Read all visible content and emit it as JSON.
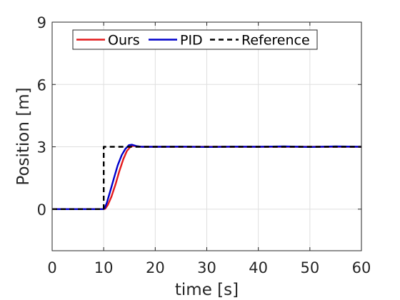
{
  "chart_data": {
    "type": "line",
    "title": "",
    "xlabel": "time [s]",
    "ylabel": "Position [m]",
    "xlim": [
      0,
      60
    ],
    "ylim": [
      -2,
      9
    ],
    "xticks": [
      0,
      10,
      20,
      30,
      40,
      50,
      60
    ],
    "yticks": [
      0,
      3,
      6,
      9
    ],
    "grid": true,
    "legend": {
      "location": "top-left",
      "orientation": "horizontal"
    },
    "series": [
      {
        "name": "Ours",
        "color": "#e41a1c",
        "style": "solid",
        "x": [
          0,
          9.9,
          10.3,
          10.8,
          11.5,
          12.3,
          13.0,
          13.8,
          14.5,
          15.2,
          15.8,
          16.5,
          17.5,
          20,
          30,
          40,
          50,
          60
        ],
        "y": [
          0,
          0,
          0.02,
          0.2,
          0.6,
          1.2,
          1.8,
          2.4,
          2.8,
          3.0,
          3.05,
          3.02,
          3.0,
          3.0,
          3.0,
          3.0,
          3.0,
          3.0
        ]
      },
      {
        "name": "PID",
        "color": "#0000cc",
        "style": "solid",
        "x": [
          0,
          9.9,
          10.2,
          10.6,
          11.2,
          12.0,
          12.7,
          13.5,
          14.2,
          14.9,
          15.5,
          16.3,
          17.3,
          20,
          25,
          30,
          35,
          40,
          45,
          50,
          55,
          60
        ],
        "y": [
          0,
          0,
          0.05,
          0.3,
          0.8,
          1.5,
          2.1,
          2.6,
          2.9,
          3.08,
          3.1,
          3.04,
          3.0,
          3.0,
          3.01,
          2.99,
          3.01,
          3.0,
          3.02,
          2.99,
          3.02,
          3.0
        ]
      },
      {
        "name": "Reference",
        "color": "#000000",
        "style": "dashed",
        "x": [
          0,
          10,
          10,
          60
        ],
        "y": [
          0,
          0,
          3,
          3
        ]
      }
    ]
  }
}
